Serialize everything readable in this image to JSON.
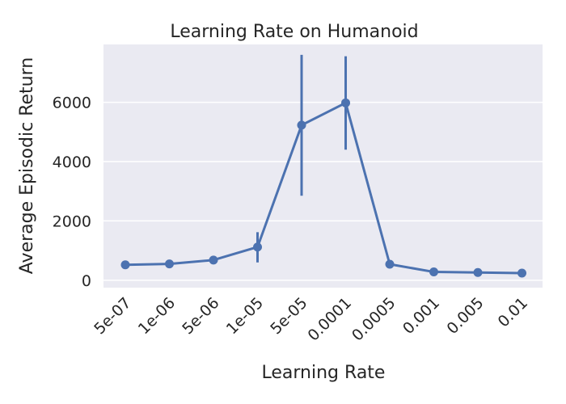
{
  "chart_data": {
    "type": "line",
    "title": "Learning Rate on Humanoid",
    "xlabel": "Learning Rate",
    "ylabel": "Average Episodic Return",
    "categories": [
      "5e-07",
      "1e-06",
      "5e-06",
      "1e-05",
      "5e-05",
      "0.0001",
      "0.0005",
      "0.001",
      "0.005",
      "0.01"
    ],
    "series": [
      {
        "values": [
          520,
          550,
          680,
          1120,
          5230,
          5980,
          540,
          280,
          260,
          240
        ],
        "error_low": [
          520,
          550,
          680,
          600,
          2850,
          4400,
          540,
          280,
          260,
          240
        ],
        "error_high": [
          520,
          550,
          680,
          1620,
          7600,
          7550,
          540,
          280,
          260,
          240
        ]
      }
    ],
    "ylim": [
      -250,
      7950
    ],
    "yticks": [
      0,
      2000,
      4000,
      6000
    ],
    "grid": true,
    "colors": {
      "line": "#4c72b0",
      "plot_background": "#eaeaf2",
      "grid": "#ffffff",
      "text": "#262626"
    }
  }
}
